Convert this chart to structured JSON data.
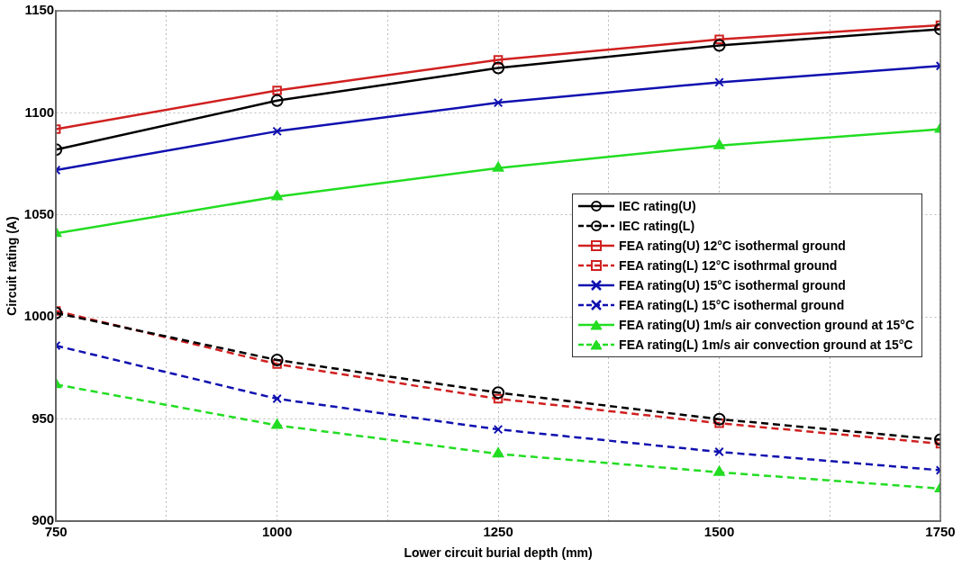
{
  "chart_data": {
    "type": "line",
    "xlabel": "Lower circuit burial depth (mm)",
    "ylabel": "Circuit rating (A)",
    "x": [
      750,
      1000,
      1250,
      1500,
      1750
    ],
    "xlim": [
      750,
      1750
    ],
    "xticks": [
      750,
      {
        "value": 875,
        "label": null
      },
      1000,
      {
        "value": 1125,
        "label": null
      },
      1250,
      {
        "value": 1375,
        "label": null
      },
      1500,
      {
        "value": 1625,
        "label": null
      },
      1750
    ],
    "ylim": [
      900,
      1150
    ],
    "yticks": [
      900,
      950,
      1000,
      1050,
      1100,
      1150
    ],
    "grid": true,
    "legend": "right",
    "series": [
      {
        "name": "IEC rating(U)",
        "color": "#000000",
        "marker": "circle",
        "line_style": "solid",
        "values": [
          1082,
          1106,
          1122,
          1133,
          1141
        ]
      },
      {
        "name": "IEC rating(L)",
        "color": "#000000",
        "marker": "circle",
        "line_style": "dashed",
        "values": [
          1002,
          979,
          963,
          950,
          940
        ]
      },
      {
        "name": "FEA rating(U) 12°C isothermal ground",
        "color": "#d02020",
        "marker": "square",
        "line_style": "solid",
        "values": [
          1092,
          1111,
          1126,
          1136,
          1143
        ]
      },
      {
        "name": "FEA rating(L) 12°C isothrmal ground",
        "color": "#d02020",
        "marker": "square",
        "line_style": "dashed",
        "values": [
          1003,
          977,
          960,
          948,
          938
        ]
      },
      {
        "name": "FEA rating(U) 15°C isothermal ground",
        "color": "#1010b0",
        "marker": "cross",
        "line_style": "solid",
        "values": [
          1072,
          1091,
          1105,
          1115,
          1123
        ]
      },
      {
        "name": "FEA rating(L) 15°C isothermal ground",
        "color": "#1010b0",
        "marker": "cross",
        "line_style": "dashed",
        "values": [
          986,
          960,
          945,
          934,
          925
        ]
      },
      {
        "name": "FEA rating(U) 1m/s air convection ground at 15°C",
        "color": "#22dd22",
        "marker": "triangle",
        "line_style": "solid",
        "values": [
          1041,
          1059,
          1073,
          1084,
          1092
        ]
      },
      {
        "name": "FEA rating(L) 1m/s air convection ground at 15°C",
        "color": "#22dd22",
        "marker": "triangle",
        "line_style": "dashed",
        "values": [
          967,
          947,
          933,
          924,
          916
        ]
      }
    ]
  }
}
